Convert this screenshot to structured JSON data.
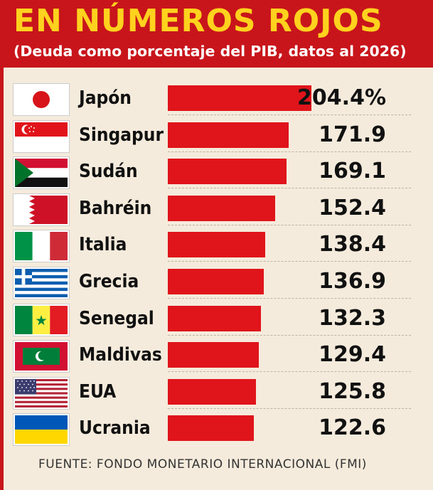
{
  "header": {
    "title": "EN NÚMEROS ROJOS",
    "subtitle": "(Deuda como porcentaje del PIB, datos al 2026)"
  },
  "colors": {
    "header_bg": "#c8151b",
    "title": "#ffd21e",
    "bar": "#e0141b",
    "background": "#f5ebdc"
  },
  "chart_data": {
    "type": "bar",
    "orientation": "horizontal",
    "title": "EN NÚMEROS ROJOS",
    "subtitle": "(Deuda como porcentaje del PIB, datos al 2026)",
    "categories": [
      "Japón",
      "Singapur",
      "Sudán",
      "Bahréin",
      "Italia",
      "Grecia",
      "Senegal",
      "Maldivas",
      "EUA",
      "Ucrania"
    ],
    "values": [
      204.4,
      171.9,
      169.1,
      152.4,
      138.4,
      136.9,
      132.3,
      129.4,
      125.8,
      122.6
    ],
    "value_labels": [
      "204.4%",
      "171.9",
      "169.1",
      "152.4",
      "138.4",
      "136.9",
      "132.3",
      "129.4",
      "125.8",
      "122.6"
    ],
    "flag_icons": [
      "japan-flag-icon",
      "singapore-flag-icon",
      "sudan-flag-icon",
      "bahrain-flag-icon",
      "italy-flag-icon",
      "greece-flag-icon",
      "senegal-flag-icon",
      "maldives-flag-icon",
      "usa-flag-icon",
      "ukraine-flag-icon"
    ],
    "xlabel": "",
    "ylabel": "",
    "grid": false,
    "legend": "none"
  },
  "source": "FUENTE: FONDO MONETARIO INTERNACIONAL (FMI)"
}
